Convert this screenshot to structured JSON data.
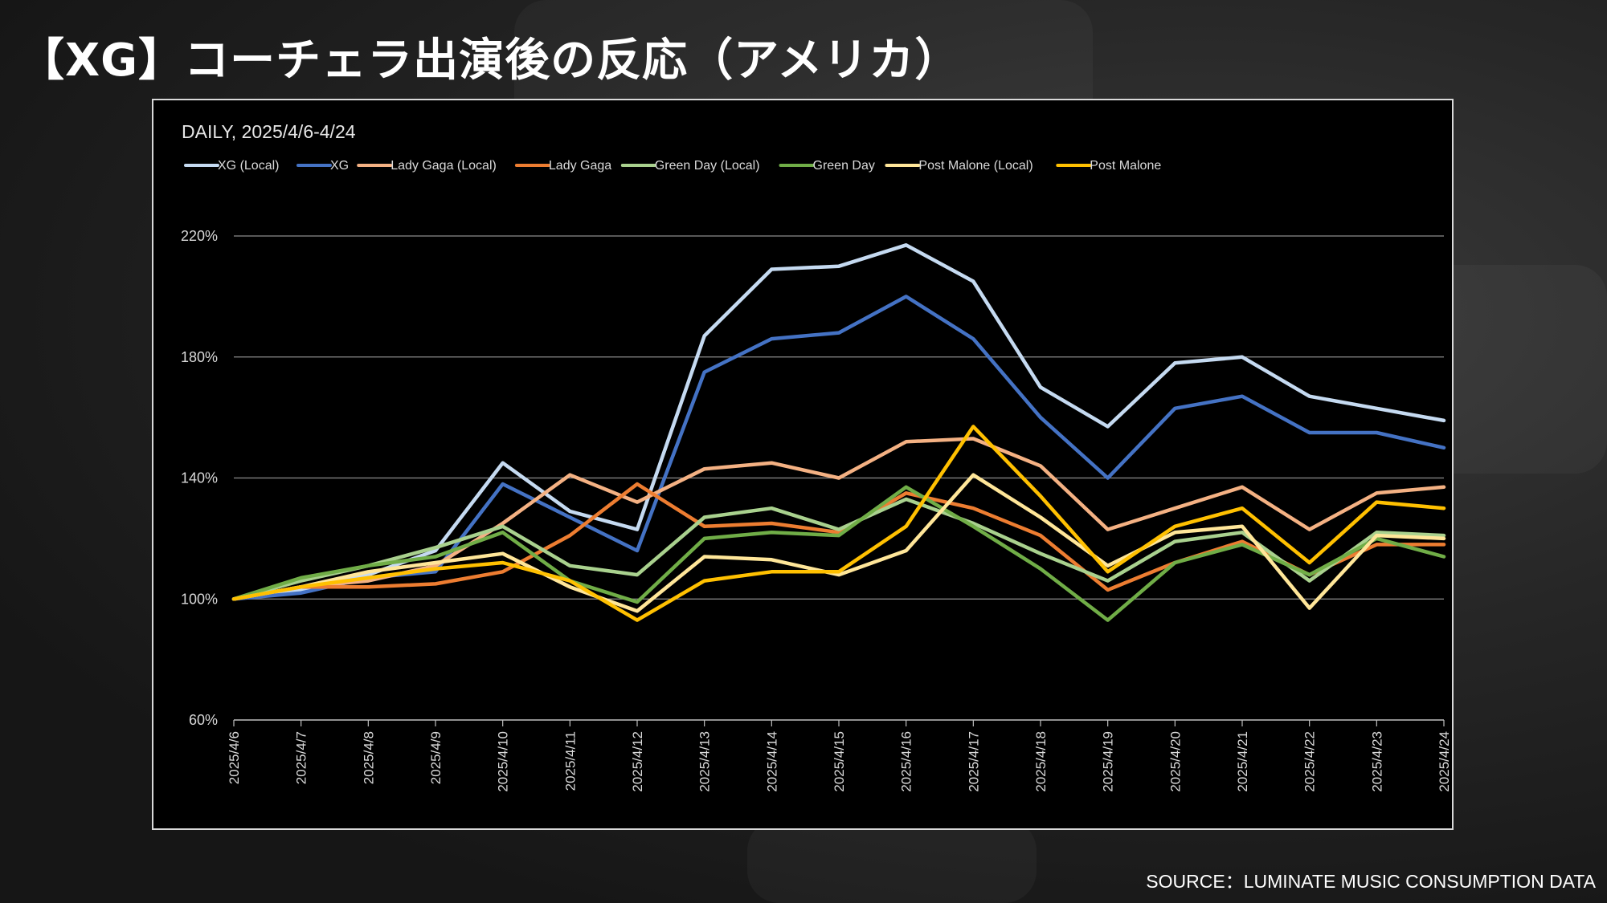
{
  "slide": {
    "title": "【XG】コーチェラ出演後の反応（アメリカ）",
    "source": "SOURCE：LUMINATE MUSIC CONSUMPTION DATA"
  },
  "chart_data": {
    "type": "line",
    "title": "DAILY, 2025/4/6-4/24",
    "xlabel": "",
    "ylabel": "",
    "ylim": [
      60,
      220
    ],
    "yticks": [
      60,
      100,
      140,
      180,
      220
    ],
    "ytick_labels": [
      "60%",
      "100%",
      "140%",
      "180%",
      "220%"
    ],
    "grid": true,
    "legend_position": "top-left",
    "categories": [
      "2025/4/6",
      "2025/4/7",
      "2025/4/8",
      "2025/4/9",
      "2025/4/10",
      "2025/4/11",
      "2025/4/12",
      "2025/4/13",
      "2025/4/14",
      "2025/4/15",
      "2025/4/16",
      "2025/4/17",
      "2025/4/18",
      "2025/4/19",
      "2025/4/20",
      "2025/4/21",
      "2025/4/22",
      "2025/4/23",
      "2025/4/24"
    ],
    "series": [
      {
        "name": "XG (Local)",
        "color": "#c5daf1",
        "values": [
          100,
          103,
          108,
          116,
          145,
          129,
          123,
          187,
          209,
          210,
          217,
          205,
          170,
          157,
          178,
          180,
          167,
          163,
          159
        ]
      },
      {
        "name": "XG",
        "color": "#4472c4",
        "values": [
          100,
          102,
          107,
          109,
          138,
          127,
          116,
          175,
          186,
          188,
          200,
          186,
          160,
          140,
          163,
          167,
          155,
          155,
          150
        ]
      },
      {
        "name": "Lady Gaga (Local)",
        "color": "#f4b183",
        "values": [
          100,
          104,
          106,
          111,
          125,
          141,
          132,
          143,
          145,
          140,
          152,
          153,
          144,
          123,
          130,
          137,
          123,
          135,
          137
        ]
      },
      {
        "name": "Lady Gaga",
        "color": "#ed7d31",
        "values": [
          100,
          104,
          104,
          105,
          109,
          121,
          138,
          124,
          125,
          122,
          135,
          130,
          121,
          103,
          112,
          119,
          108,
          118,
          118
        ]
      },
      {
        "name": "Green Day (Local)",
        "color": "#a9d18e",
        "values": [
          100,
          106,
          111,
          117,
          124,
          111,
          108,
          127,
          130,
          123,
          133,
          125,
          115,
          106,
          119,
          122,
          106,
          122,
          121
        ]
      },
      {
        "name": "Green Day",
        "color": "#70ad47",
        "values": [
          100,
          107,
          111,
          114,
          122,
          106,
          99,
          120,
          122,
          121,
          137,
          124,
          110,
          93,
          112,
          118,
          108,
          120,
          114
        ]
      },
      {
        "name": "Post Malone (Local)",
        "color": "#ffe699",
        "values": [
          100,
          104,
          109,
          112,
          115,
          104,
          96,
          114,
          113,
          108,
          116,
          141,
          127,
          111,
          122,
          124,
          97,
          121,
          120
        ]
      },
      {
        "name": "Post Malone",
        "color": "#ffc000",
        "values": [
          100,
          104,
          107,
          110,
          112,
          106,
          93,
          106,
          109,
          109,
          124,
          157,
          134,
          109,
          124,
          130,
          112,
          132,
          130
        ]
      }
    ]
  }
}
